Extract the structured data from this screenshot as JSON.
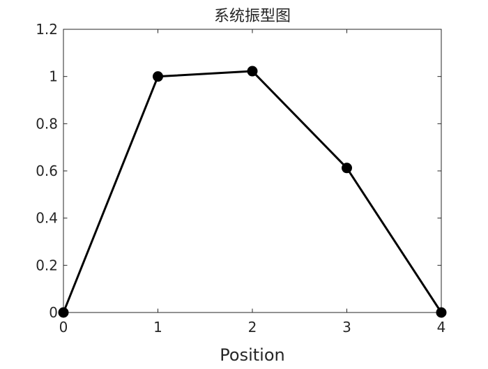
{
  "chart_data": {
    "type": "line",
    "title": "系统振型图",
    "xlabel": "Position",
    "ylabel": "",
    "x": [
      0,
      1,
      2,
      3,
      4
    ],
    "series": [
      {
        "values": [
          0,
          1.0,
          1.0225,
          0.6125,
          0
        ]
      }
    ],
    "xlim": [
      0,
      4
    ],
    "ylim": [
      0,
      1.2
    ],
    "xticks": [
      "0",
      "1",
      "2",
      "3",
      "4"
    ],
    "yticks": [
      "0",
      "0.2",
      "0.4",
      "0.6",
      "0.8",
      "1",
      "1.2"
    ],
    "marker": "filled-circle",
    "line_color": "#000000",
    "marker_color": "#000000",
    "grid": false,
    "box": true
  }
}
